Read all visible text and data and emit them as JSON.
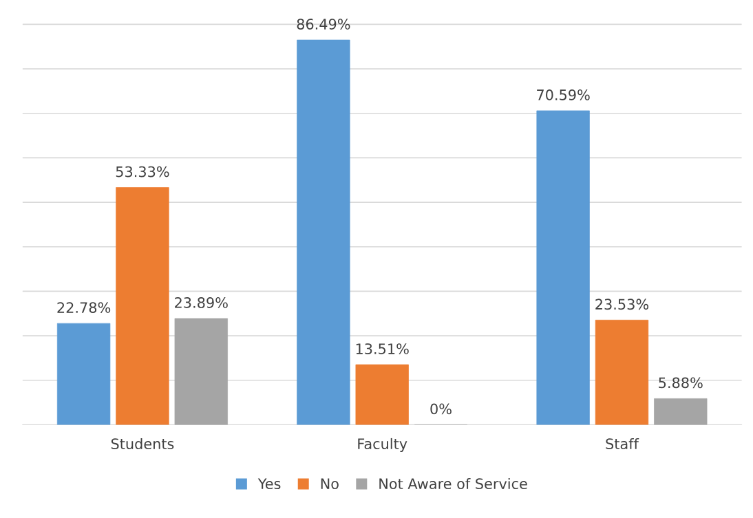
{
  "chart_data": {
    "type": "bar",
    "categories": [
      "Students",
      "Faculty",
      "Staff"
    ],
    "series": [
      {
        "name": "Yes",
        "color": "#5b9bd5",
        "values": [
          22.78,
          86.49,
          70.59
        ],
        "value_labels": [
          "22.78%",
          "86.49%",
          "70.59%"
        ]
      },
      {
        "name": "No",
        "color": "#ed7d31",
        "values": [
          53.33,
          13.51,
          23.53
        ],
        "value_labels": [
          "53.33%",
          "13.51%",
          "23.53%"
        ]
      },
      {
        "name": "Not Aware of Service",
        "color": "#a5a5a5",
        "values": [
          23.89,
          0,
          5.88
        ],
        "value_labels": [
          "23.89%",
          "0%",
          "5.88%"
        ]
      }
    ],
    "tick_labels": "x",
    "grid": "y",
    "legend": "bottom"
  }
}
